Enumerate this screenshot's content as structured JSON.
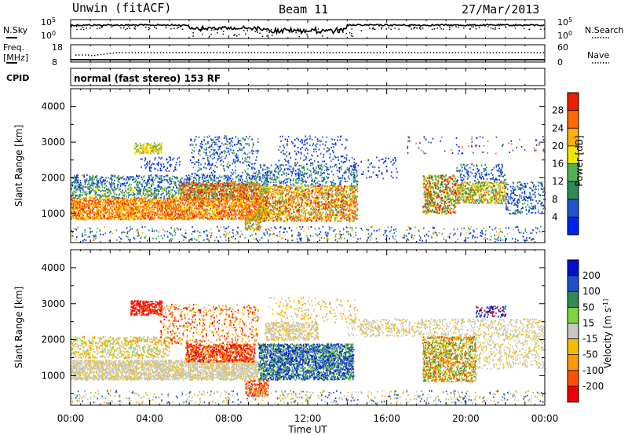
{
  "header": {
    "station": "Unwin (fitACF)",
    "beam": "Beam 11",
    "date": "27/Mar/2013"
  },
  "noise_panel": {
    "left_label": "N.Sky",
    "right_label": "N.Search",
    "left_ticks": [
      "10^5",
      "10^0"
    ],
    "right_ticks": [
      "10^5",
      "10^0"
    ]
  },
  "freq_panel": {
    "left_label_line1": "Freq.",
    "left_label_line2": "[MHz]",
    "right_label": "Nave",
    "left_ticks": [
      "18",
      "8"
    ],
    "right_ticks": [
      "60",
      "0"
    ],
    "cpid_label": "CPID",
    "cpid_text": "normal (fast stereo) 153 RF"
  },
  "colors": {
    "power": [
      "#0022ee",
      "#2255cc",
      "#2e8b57",
      "#55b055",
      "#f2e600",
      "#ffb000",
      "#ff6a00",
      "#ee1c00"
    ],
    "velocity": [
      "#ee0000",
      "#ff5000",
      "#ff9900",
      "#f0c000",
      "#c8c8c0",
      "#7fd33f",
      "#2e8b57",
      "#1e50cc",
      "#0010cc"
    ]
  },
  "chart_data": [
    {
      "type": "heatmap",
      "name": "power",
      "ylabel": "Slant Range [km]",
      "ylim": [
        180,
        4500
      ],
      "yticks": [
        "1000",
        "2000",
        "3000",
        "4000"
      ],
      "xlim_hours": [
        0,
        24
      ],
      "colorbar": {
        "label": "Power [dB]",
        "range": [
          0,
          32
        ],
        "ticks": [
          "4",
          "8",
          "12",
          "16",
          "20",
          "24",
          "28"
        ]
      }
    },
    {
      "type": "heatmap",
      "name": "velocity",
      "ylabel": "Slant Range [km]",
      "ylim": [
        180,
        4500
      ],
      "yticks": [
        "1000",
        "2000",
        "3000",
        "4000"
      ],
      "xlim_hours": [
        0,
        24
      ],
      "colorbar": {
        "label": "Velocity [m s^-1]",
        "ticks": [
          "200",
          "100",
          "50",
          "15",
          "-15",
          "-50",
          "-100",
          "-200"
        ]
      }
    }
  ],
  "xaxis": {
    "label": "Time UT",
    "ticks": [
      "00:00",
      "04:00",
      "08:00",
      "12:00",
      "16:00",
      "20:00",
      "00:00"
    ]
  }
}
